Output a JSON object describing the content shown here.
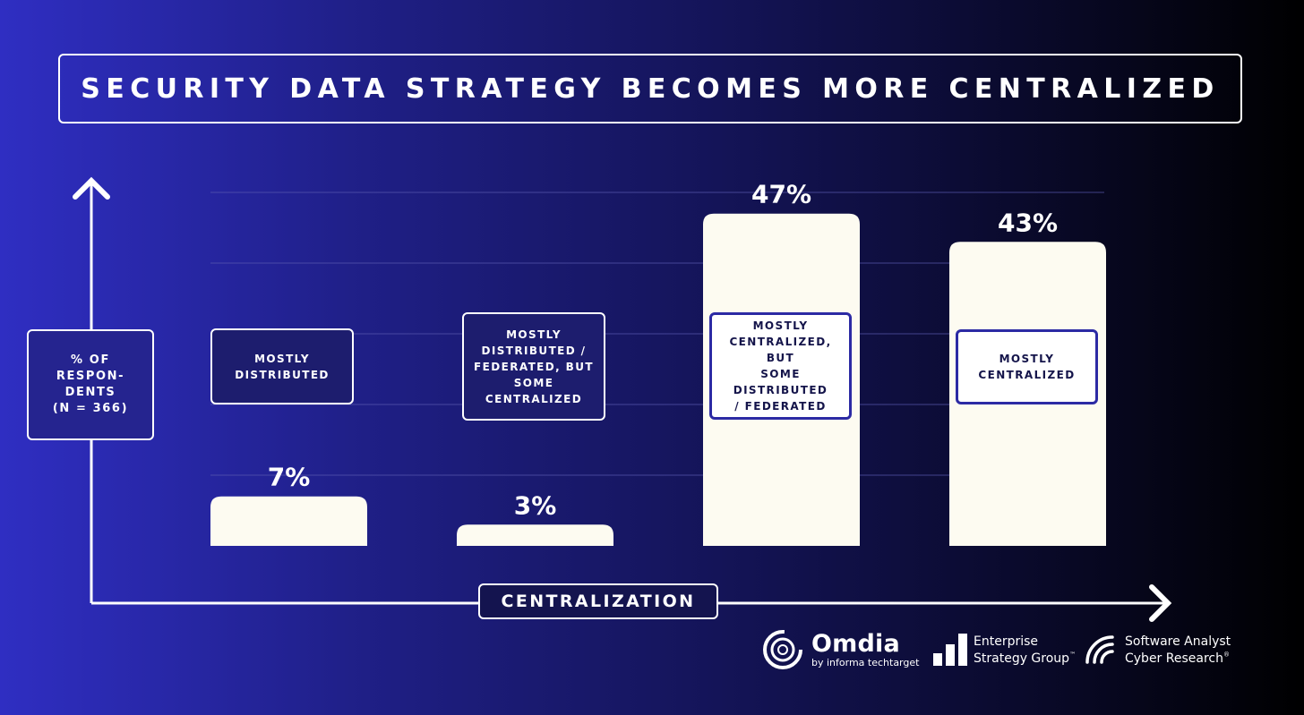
{
  "chart_data": {
    "type": "bar",
    "title": "SECURITY DATA STRATEGY BECOMES MORE CENTRALIZED",
    "xlabel": "CENTRALIZATION",
    "ylabel": "% OF RESPON-\nDENTS\n(N = 366)",
    "categories": [
      "MOSTLY\nDISTRIBUTED",
      "MOSTLY\nDISTRIBUTED /\nFEDERATED, BUT\nSOME\nCENTRALIZED",
      "MOSTLY\nCENTRALIZED, BUT\nSOME DISTRIBUTED\n/ FEDERATED",
      "MOSTLY\nCENTRALIZED"
    ],
    "values": [
      7,
      3,
      47,
      43
    ],
    "value_labels": [
      "7%",
      "3%",
      "47%",
      "43%"
    ],
    "ylim": [
      0,
      50
    ],
    "grid": true,
    "colors": {
      "bar": "#fdfbf1",
      "grid": "#5a5ab0",
      "label_border": "#2c2aa4"
    }
  },
  "logos": {
    "omdia": {
      "name": "Omdia",
      "tagline": "by informa techtarget",
      "icon": "omdia-ring-icon"
    },
    "esg": {
      "name": "Enterprise\nStrategy Group",
      "tm": "™",
      "icon": "bars-icon"
    },
    "sa": {
      "name": "Software Analyst\nCyber Research",
      "reg": "®",
      "icon": "signal-icon"
    }
  }
}
